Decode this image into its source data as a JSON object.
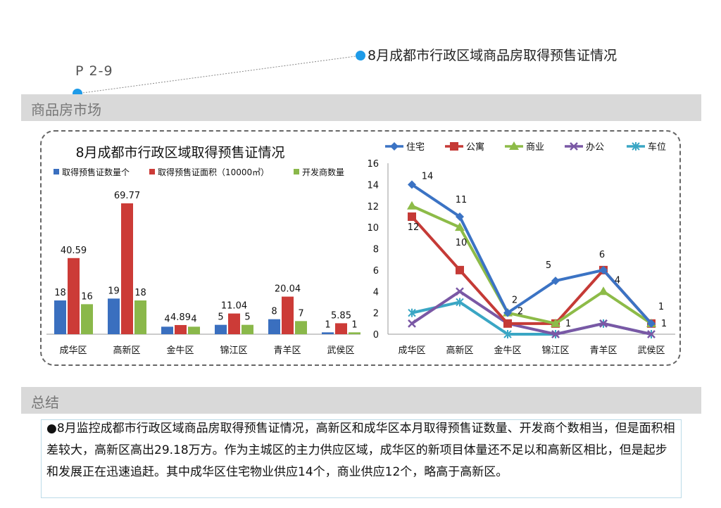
{
  "page": {
    "callout_title": "8月成都市行政区域商品房取得预售证情况",
    "page_code": "P 2-9",
    "section_title": "商品房市场",
    "summary_title": "总结",
    "summary_text": "●8月监控成都市行政区域商品房取得预售证情况，高新区和成华区本月取得预售证数量、开发商个数相当，但是面积相差较大，高新区高出29.18万方。作为主城区的主力供应区域，成华区的新项目体量还不足以和高新区相比，但是起步和发展正在迅速追赶。其中成华区住宅物业供应14个，商业供应12个，略高于高新区。",
    "colors": {
      "dot": "#1e9be8",
      "band": "#d9d9d9"
    }
  },
  "chart_data": [
    {
      "type": "bar",
      "title": "8月成都市行政区域取得预售证情况",
      "categories": [
        "成华区",
        "高新区",
        "金牛区",
        "锦江区",
        "青羊区",
        "武侯区"
      ],
      "series": [
        {
          "name": "取得预售证数量个",
          "color": "#3a6fbf",
          "values": [
            18,
            19,
            4,
            5,
            8,
            1
          ]
        },
        {
          "name": "取得预售证面积（10000㎡）",
          "color": "#cc3b37",
          "values": [
            40.59,
            69.77,
            4.89,
            11.04,
            20.04,
            5.85
          ]
        },
        {
          "name": "开发商数量",
          "color": "#8ab84a",
          "values": [
            16,
            18,
            4,
            5,
            7,
            1
          ]
        }
      ],
      "legend": "top"
    },
    {
      "type": "line",
      "categories": [
        "成华区",
        "高新区",
        "金牛区",
        "锦江区",
        "青羊区",
        "武侯区"
      ],
      "ylim": [
        0,
        16
      ],
      "yticks": [
        0,
        2,
        4,
        6,
        8,
        10,
        12,
        14,
        16
      ],
      "legend": "top",
      "series": [
        {
          "name": "住宅",
          "color": "#3b73c4",
          "marker": "diamond",
          "values": [
            14,
            11,
            2,
            5,
            6,
            1
          ]
        },
        {
          "name": "公寓",
          "color": "#c53a36",
          "marker": "square",
          "values": [
            11,
            6,
            1,
            1,
            6,
            1
          ]
        },
        {
          "name": "商业",
          "color": "#8dbb48",
          "marker": "triangle",
          "values": [
            12,
            10,
            2,
            1,
            4,
            1
          ]
        },
        {
          "name": "办公",
          "color": "#7a58a5",
          "marker": "x",
          "values": [
            1,
            4,
            1,
            0,
            1,
            0
          ]
        },
        {
          "name": "车位",
          "color": "#3aa6c4",
          "marker": "star",
          "values": [
            2,
            3,
            0,
            0,
            1,
            0
          ]
        }
      ],
      "data_labels": [
        {
          "series": "住宅",
          "index": 0,
          "text": "14"
        },
        {
          "series": "住宅",
          "index": 1,
          "text": "11"
        },
        {
          "series": "住宅",
          "index": 2,
          "text": "2"
        },
        {
          "series": "住宅",
          "index": 3,
          "text": "5"
        },
        {
          "series": "住宅",
          "index": 4,
          "text": "6"
        },
        {
          "series": "住宅",
          "index": 5,
          "text": "1"
        },
        {
          "series": "商业",
          "index": 0,
          "text": "12"
        },
        {
          "series": "商业",
          "index": 1,
          "text": "10"
        },
        {
          "series": "商业",
          "index": 2,
          "text": "2"
        },
        {
          "series": "商业",
          "index": 3,
          "text": "1"
        },
        {
          "series": "商业",
          "index": 4,
          "text": "4"
        },
        {
          "series": "商业",
          "index": 5,
          "text": "1"
        }
      ]
    }
  ]
}
